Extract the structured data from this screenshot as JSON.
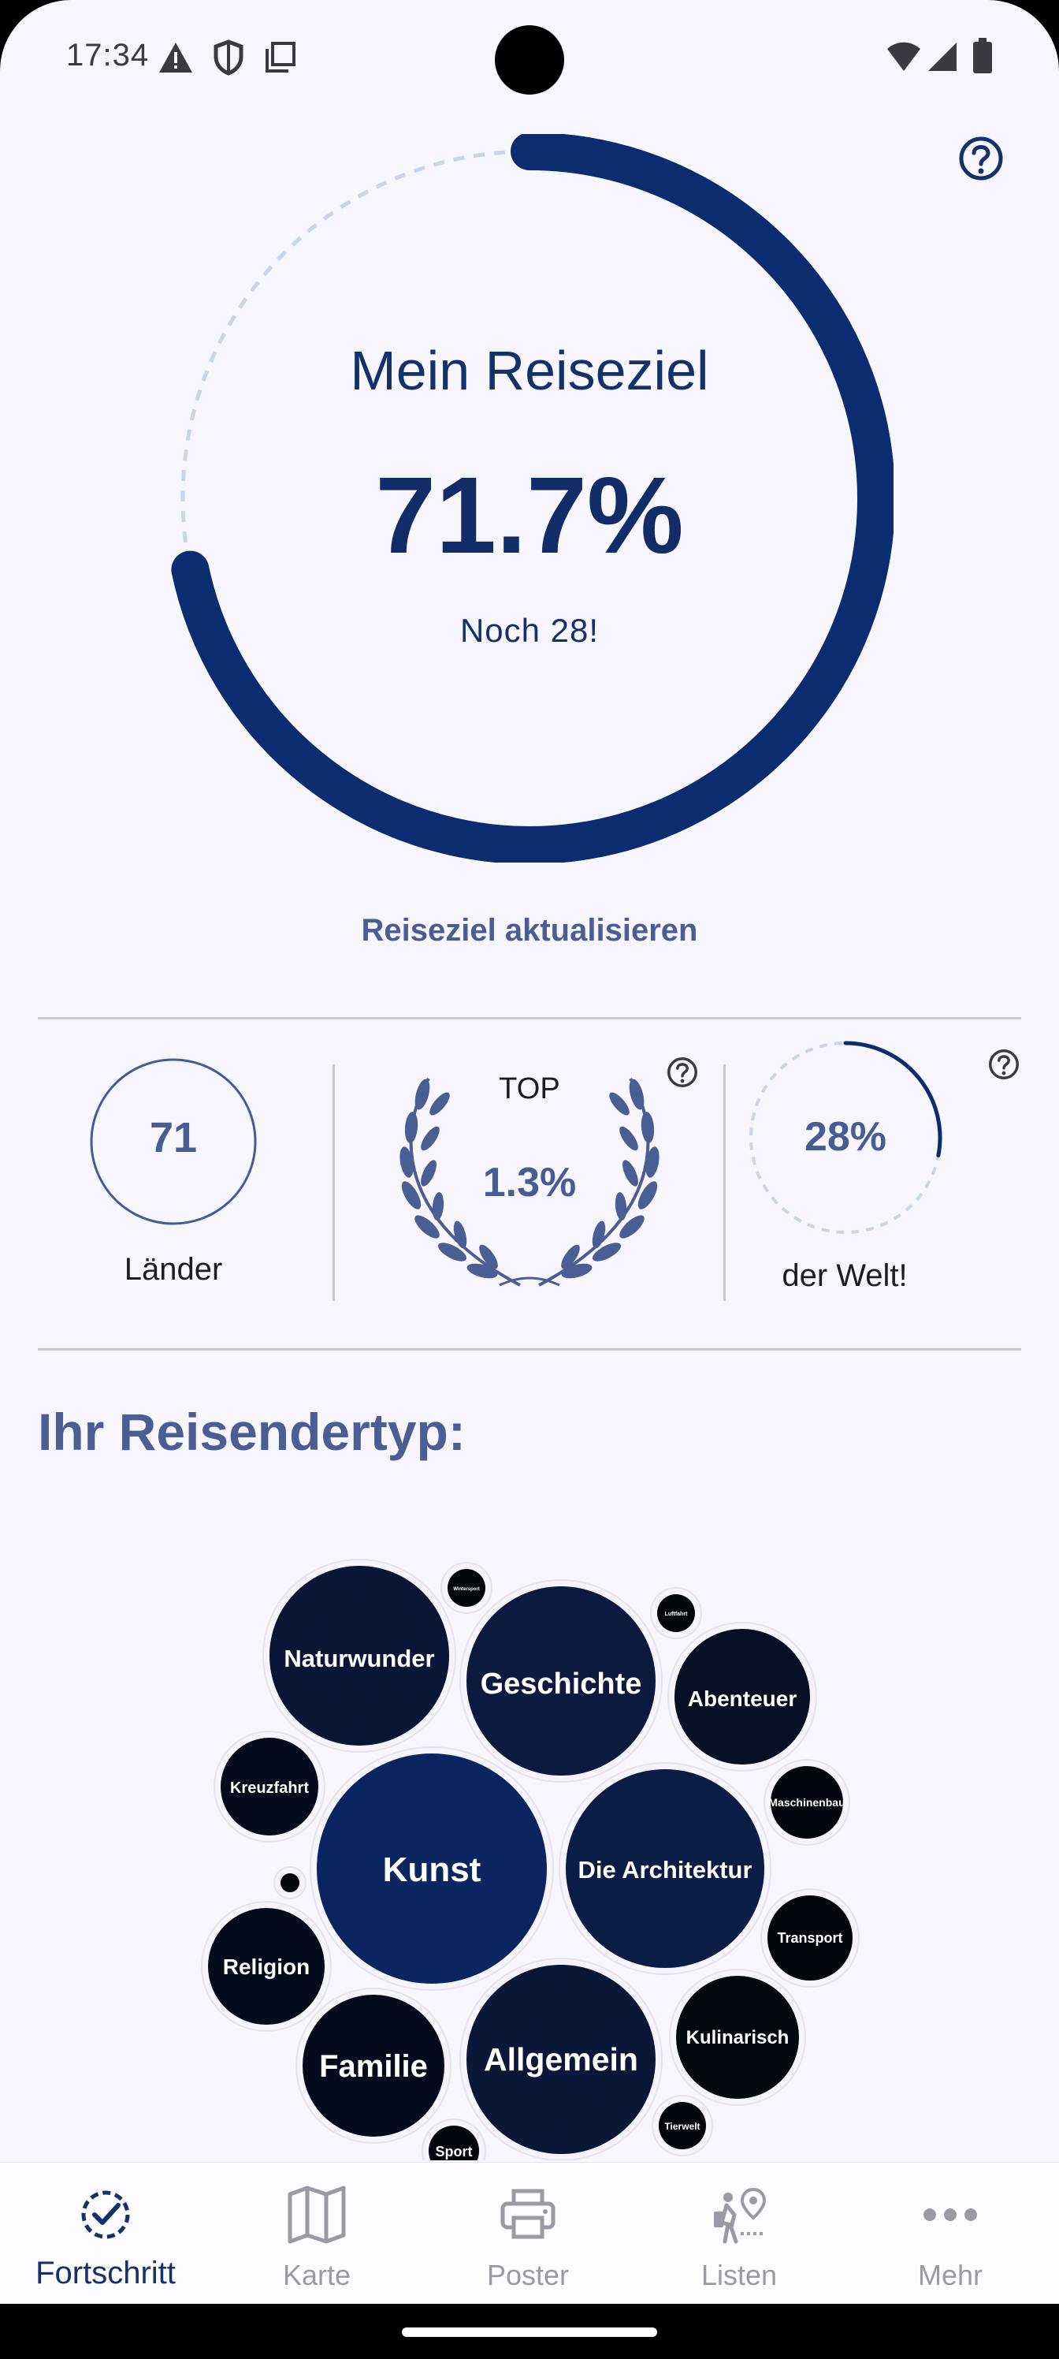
{
  "status_bar": {
    "time": "17:34",
    "icons_left": [
      "warning-icon",
      "shield-icon",
      "copy-icon"
    ],
    "icons_right": [
      "wifi-icon",
      "signal-icon",
      "battery-icon"
    ]
  },
  "hero": {
    "title": "Mein Reiseziel",
    "percent": "71.7%",
    "progress_fraction": 0.717,
    "remaining": "Noch 28!",
    "update_link": "Reiseziel aktualisieren"
  },
  "stats": {
    "countries": {
      "value": "71",
      "label": "Länder"
    },
    "rank": {
      "top_label": "TOP",
      "value": "1.3%"
    },
    "world": {
      "value": "28%",
      "fraction": 0.28,
      "label": "der Welt!"
    }
  },
  "traveler_type": {
    "title": "Ihr Reisendertyp:",
    "bubbles": [
      {
        "label": "Naturwunder"
      },
      {
        "label": "Geschichte"
      },
      {
        "label": "Abenteuer"
      },
      {
        "label": "Kreuzfahrt"
      },
      {
        "label": "Kunst"
      },
      {
        "label": "Die Architektur"
      },
      {
        "label": "Maschinenbau"
      },
      {
        "label": "Transport"
      },
      {
        "label": "Religion"
      },
      {
        "label": "Familie"
      },
      {
        "label": "Allgemein"
      },
      {
        "label": "Kulinarisch"
      },
      {
        "label": "Tierwelt"
      },
      {
        "label": "Sport"
      },
      {
        "label": "Luftfahrt"
      },
      {
        "label": "Wintersport"
      },
      {
        "label": ""
      }
    ]
  },
  "nav": {
    "items": [
      {
        "label": "Fortschritt",
        "icon": "check-circle-icon",
        "active": true
      },
      {
        "label": "Karte",
        "icon": "map-icon",
        "active": false
      },
      {
        "label": "Poster",
        "icon": "printer-icon",
        "active": false
      },
      {
        "label": "Listen",
        "icon": "traveler-pin-icon",
        "active": false
      },
      {
        "label": "Mehr",
        "icon": "more-dots-icon",
        "active": false
      }
    ]
  },
  "colors": {
    "primary": "#0b2c6e",
    "accent": "#4a5e94",
    "track": "#c5d6ee",
    "bubble": "#0a1635",
    "background": "#f7f5fd"
  }
}
